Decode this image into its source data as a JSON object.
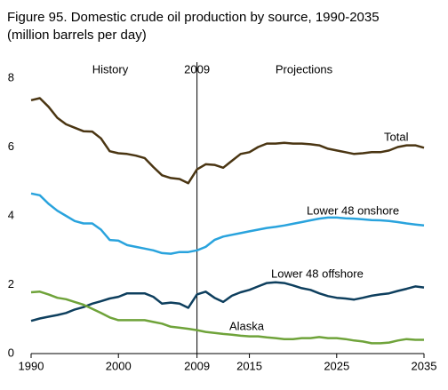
{
  "chart_data": {
    "type": "line",
    "title": "Figure 95. Domestic crude oil production by source, 1990-2035",
    "subtitle": "(million barrels per day)",
    "x": [
      1990,
      1991,
      1992,
      1993,
      1994,
      1995,
      1996,
      1997,
      1998,
      1999,
      2000,
      2001,
      2002,
      2003,
      2004,
      2005,
      2006,
      2007,
      2008,
      2009,
      2010,
      2011,
      2012,
      2013,
      2014,
      2015,
      2016,
      2017,
      2018,
      2019,
      2020,
      2021,
      2022,
      2023,
      2024,
      2025,
      2026,
      2027,
      2028,
      2029,
      2030,
      2031,
      2032,
      2033,
      2034,
      2035
    ],
    "series": [
      {
        "name": "Total",
        "color": "#4a3512",
        "values": [
          7.36,
          7.42,
          7.17,
          6.85,
          6.66,
          6.56,
          6.46,
          6.45,
          6.25,
          5.88,
          5.82,
          5.8,
          5.75,
          5.68,
          5.42,
          5.18,
          5.1,
          5.07,
          4.95,
          5.35,
          5.5,
          5.48,
          5.4,
          5.6,
          5.8,
          5.85,
          6.0,
          6.1,
          6.1,
          6.12,
          6.1,
          6.1,
          6.08,
          6.05,
          5.95,
          5.9,
          5.85,
          5.8,
          5.82,
          5.85,
          5.85,
          5.9,
          6.0,
          6.05,
          6.05,
          5.98
        ]
      },
      {
        "name": "Lower 48 onshore",
        "color": "#29a3dd",
        "values": [
          4.65,
          4.6,
          4.35,
          4.15,
          4.0,
          3.85,
          3.78,
          3.78,
          3.6,
          3.3,
          3.28,
          3.15,
          3.1,
          3.05,
          3.0,
          2.92,
          2.9,
          2.95,
          2.95,
          3.0,
          3.1,
          3.3,
          3.4,
          3.45,
          3.5,
          3.55,
          3.6,
          3.65,
          3.68,
          3.72,
          3.77,
          3.82,
          3.87,
          3.92,
          3.95,
          3.95,
          3.93,
          3.92,
          3.9,
          3.88,
          3.87,
          3.85,
          3.82,
          3.78,
          3.75,
          3.72
        ]
      },
      {
        "name": "Lower 48 offshore",
        "color": "#0e3f5e",
        "values": [
          0.95,
          1.02,
          1.07,
          1.12,
          1.18,
          1.28,
          1.35,
          1.45,
          1.52,
          1.6,
          1.65,
          1.75,
          1.75,
          1.75,
          1.65,
          1.45,
          1.48,
          1.45,
          1.33,
          1.72,
          1.8,
          1.62,
          1.5,
          1.68,
          1.78,
          1.85,
          1.95,
          2.05,
          2.07,
          2.05,
          1.98,
          1.9,
          1.85,
          1.75,
          1.67,
          1.62,
          1.6,
          1.57,
          1.62,
          1.68,
          1.72,
          1.75,
          1.82,
          1.88,
          1.95,
          1.92
        ]
      },
      {
        "name": "Alaska",
        "color": "#6fa33a",
        "values": [
          1.78,
          1.8,
          1.72,
          1.62,
          1.58,
          1.5,
          1.42,
          1.3,
          1.18,
          1.05,
          0.97,
          0.97,
          0.97,
          0.97,
          0.92,
          0.87,
          0.78,
          0.75,
          0.72,
          0.68,
          0.63,
          0.6,
          0.57,
          0.55,
          0.52,
          0.5,
          0.5,
          0.47,
          0.45,
          0.42,
          0.42,
          0.45,
          0.45,
          0.48,
          0.45,
          0.45,
          0.42,
          0.38,
          0.35,
          0.3,
          0.3,
          0.32,
          0.38,
          0.42,
          0.4,
          0.4
        ]
      }
    ],
    "xlim": [
      1990,
      2035
    ],
    "xticks": [
      1990,
      2000,
      2009,
      2015,
      2025,
      2035
    ],
    "ylim": [
      0,
      8
    ],
    "yticks": [
      0,
      2,
      4,
      6,
      8
    ],
    "divider": {
      "value": 2009,
      "label": "2009"
    },
    "annotations": [
      "History",
      "Projections"
    ],
    "grid": false
  }
}
